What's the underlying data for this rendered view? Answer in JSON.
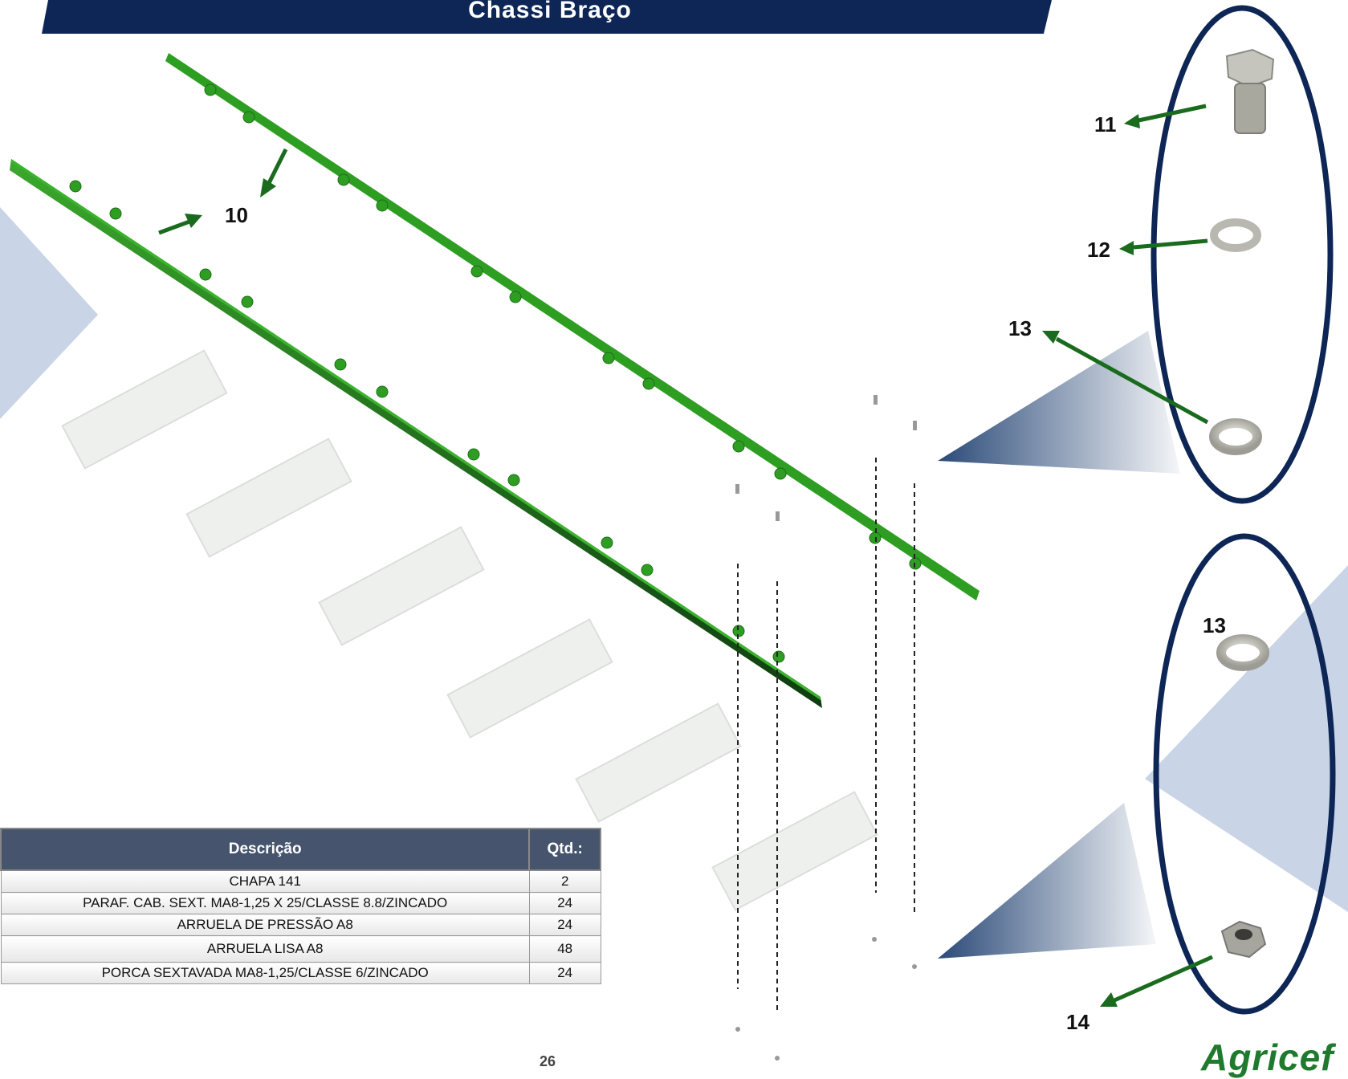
{
  "header": {
    "title": "Chassi Braço"
  },
  "callouts": {
    "c10": "10",
    "c11": "11",
    "c12": "12",
    "c13a": "13",
    "c13b": "13",
    "c14": "14"
  },
  "table": {
    "headers": {
      "description": "Descrição",
      "qty": "Qtd.:"
    },
    "rows": [
      {
        "description": "CHAPA 141",
        "qty": "2"
      },
      {
        "description": "PARAF. CAB. SEXT. MA8-1,25 X 25/CLASSE 8.8/ZINCADO",
        "qty": "24"
      },
      {
        "description": "ARRUELA DE PRESSÃO A8",
        "qty": "24"
      },
      {
        "description": "ARRUELA LISA A8",
        "qty": "48"
      },
      {
        "description": "PORCA SEXTAVADA MA8-1,25/CLASSE 6/ZINCADO",
        "qty": "24"
      }
    ]
  },
  "footer": {
    "page": "26",
    "logo": "Agricef"
  },
  "colors": {
    "navy": "#0d2656",
    "rail_green": "#2e9e22",
    "arrow_green": "#1a6b1e",
    "table_header": "#46546e",
    "panel_blue": "#c9d5e6"
  }
}
